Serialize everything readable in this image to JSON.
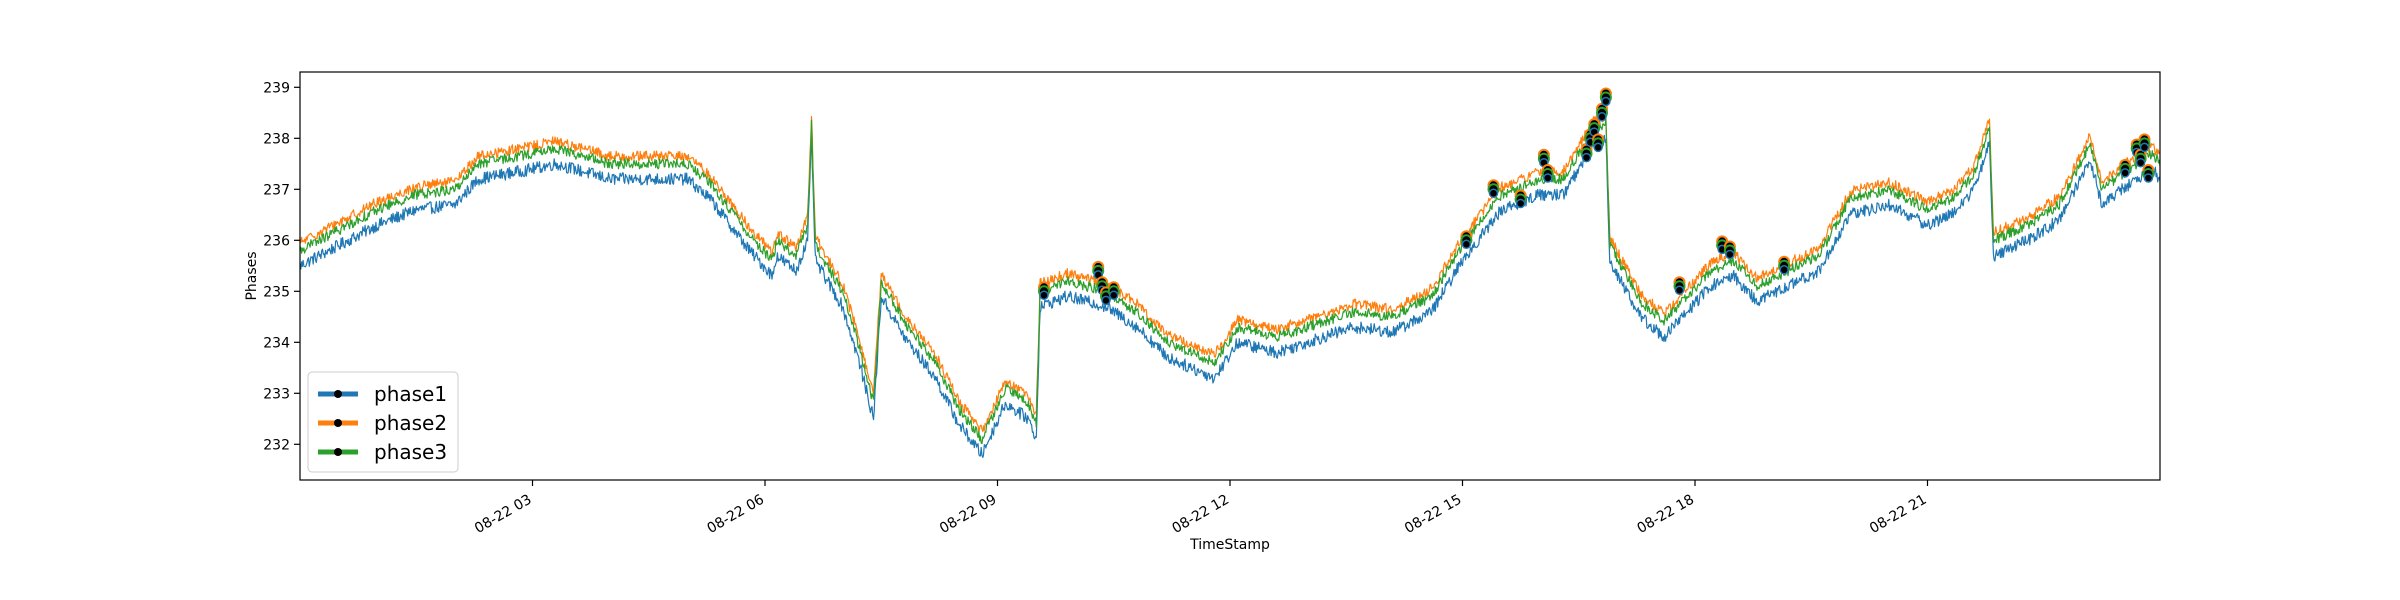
{
  "chart_data": {
    "type": "line",
    "title": "",
    "xlabel": "TimeStamp",
    "ylabel": "Phases",
    "xlim_hours": [
      0,
      24
    ],
    "ylim": [
      231.3,
      239.3
    ],
    "y_ticks": [
      232,
      233,
      234,
      235,
      236,
      237,
      238,
      239
    ],
    "x_ticks": [
      {
        "hour": 3,
        "label": "08-22 03"
      },
      {
        "hour": 6,
        "label": "08-22 06"
      },
      {
        "hour": 9,
        "label": "08-22 09"
      },
      {
        "hour": 12,
        "label": "08-22 12"
      },
      {
        "hour": 15,
        "label": "08-22 15"
      },
      {
        "hour": 18,
        "label": "08-22 18"
      },
      {
        "hour": 21,
        "label": "08-22 21"
      }
    ],
    "grid": false,
    "legend_position": "lower-left",
    "series": [
      {
        "name": "phase1",
        "color": "#1f77b4",
        "offset": -0.3,
        "noise": 0.12
      },
      {
        "name": "phase2",
        "color": "#ff7f0e",
        "offset": 0.15,
        "noise": 0.1
      },
      {
        "name": "phase3",
        "color": "#2ca02c",
        "offset": 0.0,
        "noise": 0.1
      }
    ],
    "base_profile": [
      [
        0.0,
        235.8
      ],
      [
        0.5,
        236.2
      ],
      [
        1.0,
        236.6
      ],
      [
        1.5,
        236.9
      ],
      [
        2.0,
        237.0
      ],
      [
        2.3,
        237.5
      ],
      [
        3.0,
        237.7
      ],
      [
        3.3,
        237.8
      ],
      [
        4.0,
        237.5
      ],
      [
        5.0,
        237.5
      ],
      [
        5.3,
        237.1
      ],
      [
        5.8,
        236.1
      ],
      [
        6.1,
        235.6
      ],
      [
        6.15,
        236.0
      ],
      [
        6.4,
        235.7
      ],
      [
        6.55,
        236.3
      ],
      [
        6.6,
        238.3
      ],
      [
        6.65,
        235.9
      ],
      [
        7.0,
        235.0
      ],
      [
        7.2,
        234.0
      ],
      [
        7.4,
        232.8
      ],
      [
        7.5,
        235.2
      ],
      [
        7.8,
        234.4
      ],
      [
        8.2,
        233.6
      ],
      [
        8.5,
        232.7
      ],
      [
        8.8,
        232.1
      ],
      [
        9.1,
        233.1
      ],
      [
        9.4,
        232.8
      ],
      [
        9.5,
        232.4
      ],
      [
        9.55,
        235.0
      ],
      [
        9.9,
        235.2
      ],
      [
        10.4,
        235.0
      ],
      [
        10.8,
        234.6
      ],
      [
        11.2,
        234.0
      ],
      [
        11.8,
        233.6
      ],
      [
        12.1,
        234.3
      ],
      [
        12.6,
        234.1
      ],
      [
        13.0,
        234.3
      ],
      [
        13.6,
        234.6
      ],
      [
        14.1,
        234.5
      ],
      [
        14.6,
        234.9
      ],
      [
        15.0,
        235.9
      ],
      [
        15.5,
        236.9
      ],
      [
        16.0,
        237.2
      ],
      [
        16.3,
        237.2
      ],
      [
        16.5,
        237.7
      ],
      [
        16.7,
        238.2
      ],
      [
        16.85,
        238.3
      ],
      [
        16.9,
        235.9
      ],
      [
        17.3,
        234.8
      ],
      [
        17.6,
        234.4
      ],
      [
        17.9,
        234.9
      ],
      [
        18.2,
        235.4
      ],
      [
        18.5,
        235.6
      ],
      [
        18.8,
        235.1
      ],
      [
        19.2,
        235.4
      ],
      [
        19.6,
        235.7
      ],
      [
        20.0,
        236.8
      ],
      [
        20.5,
        237.0
      ],
      [
        21.0,
        236.6
      ],
      [
        21.3,
        236.8
      ],
      [
        21.6,
        237.3
      ],
      [
        21.8,
        238.2
      ],
      [
        21.85,
        236.0
      ],
      [
        22.3,
        236.3
      ],
      [
        22.7,
        236.7
      ],
      [
        23.1,
        237.9
      ],
      [
        23.25,
        237.0
      ],
      [
        23.6,
        237.4
      ],
      [
        23.9,
        237.7
      ],
      [
        24.0,
        237.5
      ]
    ],
    "marker_points": [
      {
        "hour": 9.6,
        "value": 235.0
      },
      {
        "hour": 10.3,
        "value": 235.4
      },
      {
        "hour": 10.35,
        "value": 235.1
      },
      {
        "hour": 10.4,
        "value": 234.9
      },
      {
        "hour": 10.5,
        "value": 235.0
      },
      {
        "hour": 15.05,
        "value": 236.0
      },
      {
        "hour": 15.4,
        "value": 237.0
      },
      {
        "hour": 15.75,
        "value": 236.8
      },
      {
        "hour": 16.05,
        "value": 237.6
      },
      {
        "hour": 16.1,
        "value": 237.3
      },
      {
        "hour": 16.6,
        "value": 237.7
      },
      {
        "hour": 16.65,
        "value": 238.0
      },
      {
        "hour": 16.7,
        "value": 238.2
      },
      {
        "hour": 16.75,
        "value": 237.9
      },
      {
        "hour": 16.8,
        "value": 238.5
      },
      {
        "hour": 16.85,
        "value": 238.8
      },
      {
        "hour": 17.8,
        "value": 235.1
      },
      {
        "hour": 18.35,
        "value": 235.9
      },
      {
        "hour": 18.45,
        "value": 235.8
      },
      {
        "hour": 19.15,
        "value": 235.5
      },
      {
        "hour": 23.55,
        "value": 237.4
      },
      {
        "hour": 23.7,
        "value": 237.8
      },
      {
        "hour": 23.75,
        "value": 237.6
      },
      {
        "hour": 23.8,
        "value": 237.9
      },
      {
        "hour": 23.85,
        "value": 237.3
      }
    ]
  }
}
